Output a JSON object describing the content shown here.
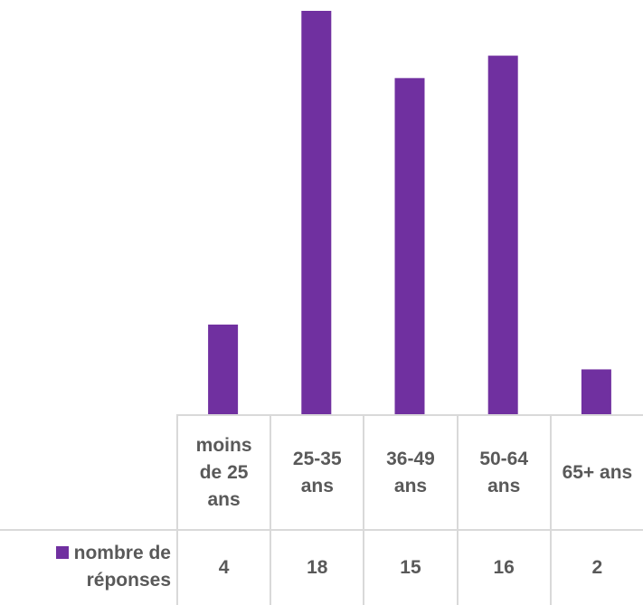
{
  "chart_data": {
    "type": "bar",
    "categories": [
      "moins de 25 ans",
      "25-35 ans",
      "36-49 ans",
      "50-64 ans",
      "65+ ans"
    ],
    "series": [
      {
        "name": "nombre de réponses",
        "color": "#7030a0",
        "values": [
          4,
          18,
          15,
          16,
          2
        ]
      }
    ],
    "ylim": [
      0,
      18
    ],
    "grid": false,
    "data_table": true
  }
}
